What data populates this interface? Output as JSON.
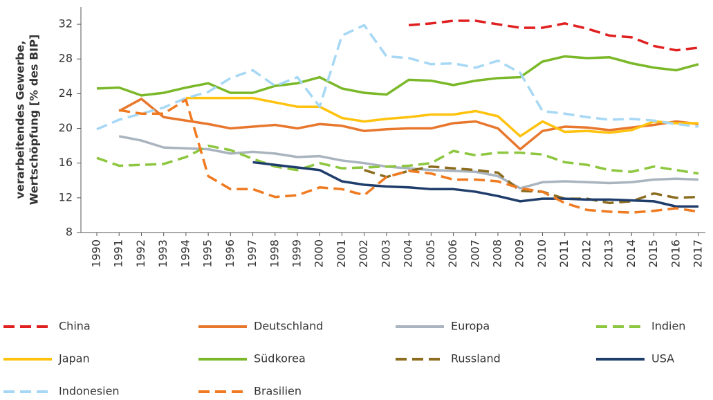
{
  "chart_data": {
    "type": "line",
    "y_label": [
      "verarbeitendes Gewerbe,",
      "Wertschöpfung [% des BIP]"
    ],
    "categories": [
      "1990",
      "1991",
      "1992",
      "1993",
      "1994",
      "1995",
      "1996",
      "1997",
      "1998",
      "1999",
      "2000",
      "2001",
      "2002",
      "2003",
      "2004",
      "2005",
      "2006",
      "2007",
      "2008",
      "2009",
      "2010",
      "2011",
      "2012",
      "2013",
      "2014",
      "2015",
      "2016",
      "2017"
    ],
    "ylim": [
      8,
      34
    ],
    "yticks": [
      8,
      12,
      16,
      20,
      24,
      28,
      32
    ],
    "series": [
      {
        "name": "China",
        "color": "#e02020",
        "dashed": true,
        "values": [
          null,
          null,
          null,
          null,
          null,
          null,
          null,
          null,
          null,
          null,
          null,
          null,
          null,
          null,
          31.9,
          32.1,
          32.4,
          32.4,
          32.0,
          31.6,
          31.6,
          32.1,
          31.5,
          30.7,
          30.5,
          29.5,
          29.0,
          29.3
        ]
      },
      {
        "name": "Deutschland",
        "color": "#e8772e",
        "dashed": false,
        "values": [
          null,
          22.0,
          23.4,
          21.3,
          20.9,
          20.5,
          20.0,
          20.2,
          20.4,
          20.0,
          20.5,
          20.3,
          19.7,
          19.9,
          20.0,
          20.0,
          20.6,
          20.8,
          20.0,
          17.6,
          19.7,
          20.2,
          20.1,
          19.8,
          20.1,
          20.4,
          20.8,
          20.5
        ]
      },
      {
        "name": "Europa",
        "color": "#a9b4bf",
        "dashed": false,
        "values": [
          null,
          19.1,
          18.6,
          17.8,
          17.7,
          17.6,
          17.1,
          17.3,
          17.1,
          16.7,
          16.8,
          16.3,
          16.0,
          15.6,
          15.4,
          15.2,
          15.1,
          15.0,
          14.5,
          13.1,
          13.8,
          13.9,
          13.8,
          13.7,
          13.8,
          14.1,
          14.2,
          14.1
        ]
      },
      {
        "name": "Indien",
        "color": "#8dc63f",
        "dashed": true,
        "values": [
          16.6,
          15.7,
          15.8,
          15.9,
          16.7,
          18.0,
          17.5,
          16.5,
          15.6,
          15.2,
          16.0,
          15.4,
          15.5,
          15.6,
          15.7,
          16.0,
          17.4,
          16.9,
          17.2,
          17.2,
          17.0,
          16.1,
          15.8,
          15.2,
          15.0,
          15.6,
          15.2,
          14.8
        ]
      },
      {
        "name": "Japan",
        "color": "#ffc20e",
        "dashed": false,
        "values": [
          null,
          null,
          null,
          null,
          23.5,
          23.5,
          23.5,
          23.5,
          23.0,
          22.5,
          22.5,
          21.2,
          20.8,
          21.1,
          21.3,
          21.6,
          21.6,
          22.0,
          21.4,
          19.1,
          20.8,
          19.6,
          19.7,
          19.5,
          19.8,
          20.8,
          20.6,
          20.6
        ]
      },
      {
        "name": "Südkorea",
        "color": "#7ab829",
        "dashed": false,
        "values": [
          24.6,
          24.7,
          23.8,
          24.1,
          24.7,
          25.2,
          24.1,
          24.1,
          24.9,
          25.2,
          25.9,
          24.6,
          24.1,
          23.9,
          25.6,
          25.5,
          25.0,
          25.5,
          25.8,
          25.9,
          27.7,
          28.3,
          28.1,
          28.2,
          27.5,
          27.0,
          26.7,
          27.4
        ]
      },
      {
        "name": "Russland",
        "color": "#8c6d1f",
        "dashed": true,
        "values": [
          null,
          null,
          null,
          null,
          null,
          null,
          null,
          null,
          null,
          null,
          null,
          null,
          15.2,
          14.4,
          15.1,
          15.6,
          15.4,
          15.2,
          14.9,
          12.8,
          12.7,
          11.9,
          11.9,
          11.4,
          11.6,
          12.5,
          12.0,
          12.1
        ]
      },
      {
        "name": "USA",
        "color": "#1f3d6b",
        "dashed": false,
        "values": [
          null,
          null,
          null,
          null,
          null,
          null,
          null,
          16.1,
          15.8,
          15.5,
          15.2,
          13.9,
          13.5,
          13.3,
          13.2,
          13.0,
          13.0,
          12.7,
          12.2,
          11.6,
          11.9,
          11.9,
          11.8,
          11.8,
          11.7,
          11.6,
          11.0,
          11.0
        ]
      },
      {
        "name": "Indonesien",
        "color": "#a6d8f5",
        "dashed": true,
        "values": [
          19.9,
          21.0,
          21.7,
          22.4,
          23.5,
          24.2,
          25.8,
          26.7,
          24.9,
          25.9,
          22.5,
          30.7,
          31.9,
          28.3,
          28.1,
          27.4,
          27.5,
          27.0,
          27.8,
          26.4,
          22.0,
          21.7,
          21.3,
          21.0,
          21.1,
          20.9,
          20.5,
          20.2
        ]
      },
      {
        "name": "Brasilien",
        "color": "#f07a20",
        "dashed": true,
        "values": [
          null,
          22.1,
          21.7,
          21.7,
          23.3,
          14.5,
          13.0,
          13.0,
          12.1,
          12.3,
          13.2,
          13.0,
          12.3,
          14.4,
          15.1,
          14.8,
          14.1,
          14.1,
          13.9,
          13.1,
          12.7,
          11.4,
          10.6,
          10.4,
          10.3,
          10.5,
          10.8,
          10.4
        ]
      }
    ]
  }
}
